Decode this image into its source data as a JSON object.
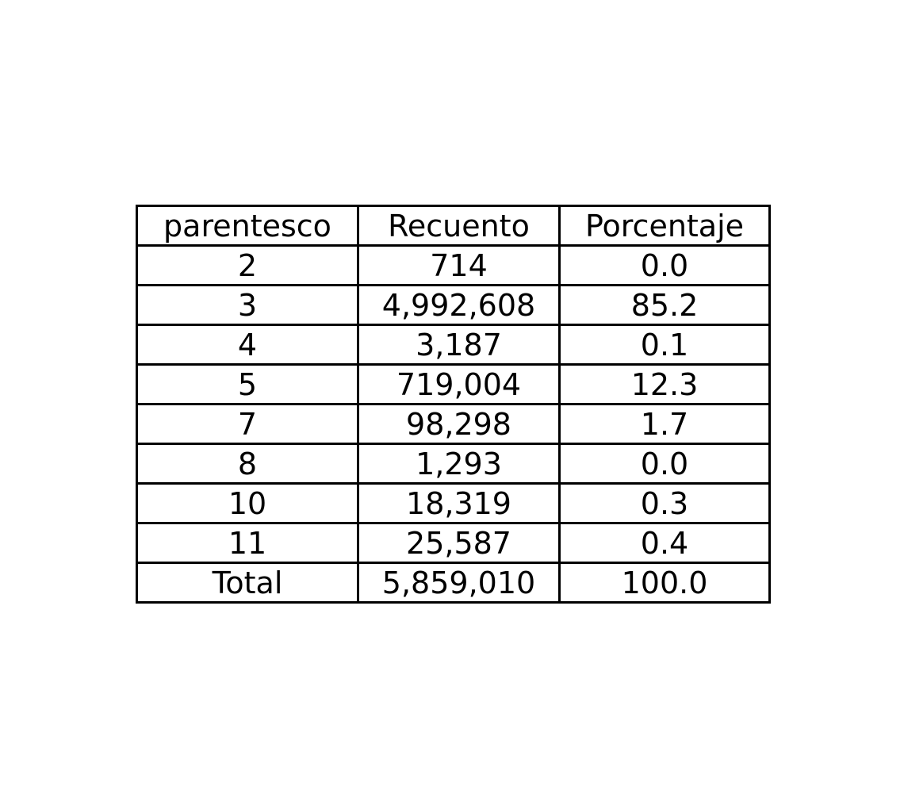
{
  "chart_data": {
    "type": "table",
    "columns": [
      "parentesco",
      "Recuento",
      "Porcentaje"
    ],
    "rows": [
      [
        "2",
        "714",
        "0.0"
      ],
      [
        "3",
        "4,992,608",
        "85.2"
      ],
      [
        "4",
        "3,187",
        "0.1"
      ],
      [
        "5",
        "719,004",
        "12.3"
      ],
      [
        "7",
        "98,298",
        "1.7"
      ],
      [
        "8",
        "1,293",
        "0.0"
      ],
      [
        "10",
        "18,319",
        "0.3"
      ],
      [
        "11",
        "25,587",
        "0.4"
      ],
      [
        "Total",
        "5,859,010",
        "100.0"
      ]
    ]
  }
}
